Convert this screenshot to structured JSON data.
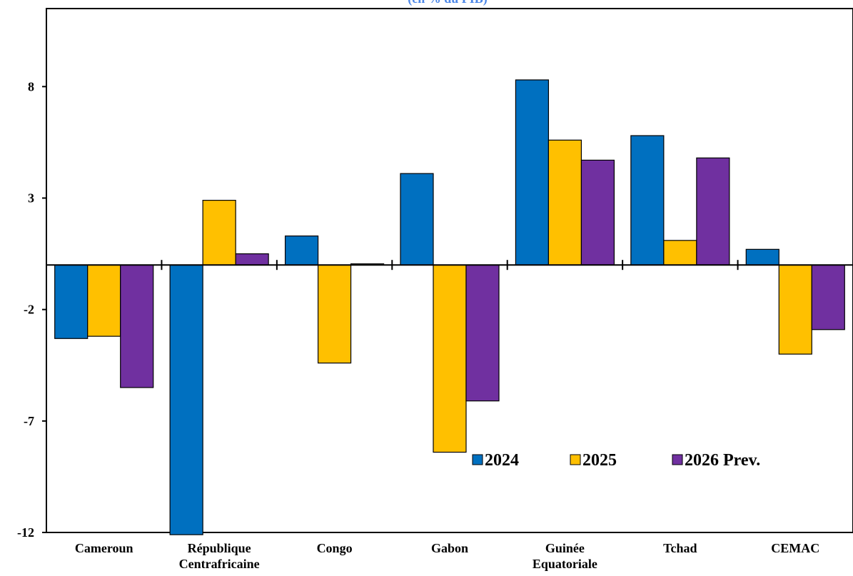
{
  "chart_data": {
    "type": "bar",
    "subtitle": "(en % du PIB)",
    "categories": [
      [
        "Cameroun"
      ],
      [
        "République",
        "Centrafricaine"
      ],
      [
        "Congo"
      ],
      [
        "Gabon"
      ],
      [
        "Guinée",
        "Equatoriale"
      ],
      [
        "Tchad"
      ],
      [
        "CEMAC"
      ]
    ],
    "series": [
      {
        "name": "2024",
        "color": "#0070c0",
        "values": [
          -3.3,
          -12.1,
          1.3,
          4.1,
          8.3,
          5.8,
          0.7
        ]
      },
      {
        "name": "2025",
        "color": "#ffc000",
        "values": [
          -3.2,
          2.9,
          -4.4,
          -8.4,
          5.6,
          1.1,
          -4.0
        ]
      },
      {
        "name": "2026 Prev.",
        "color": "#7030a0",
        "values": [
          -5.5,
          0.5,
          0.05,
          -6.1,
          4.7,
          4.8,
          -2.9
        ]
      }
    ],
    "yticks": [
      8,
      3,
      -2,
      -7,
      -12
    ],
    "ylim": [
      -12,
      11.5
    ],
    "legend_position": "bottom-right",
    "xlabel": "",
    "ylabel": ""
  }
}
